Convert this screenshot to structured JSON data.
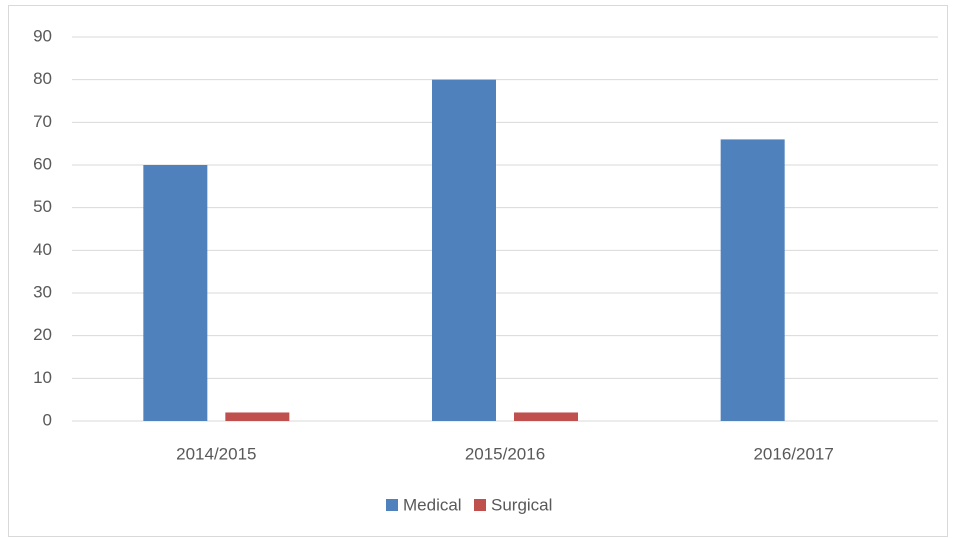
{
  "chart_data": {
    "type": "bar",
    "categories": [
      "2014/2015",
      "2015/2016",
      "2016/2017"
    ],
    "series": [
      {
        "name": "Medical",
        "color": "#4f81bd",
        "values": [
          60,
          80,
          66
        ]
      },
      {
        "name": "Surgical",
        "color": "#c0504d",
        "values": [
          2,
          2,
          0
        ]
      }
    ],
    "ylim": [
      0,
      90
    ],
    "yticks": [
      0,
      10,
      20,
      30,
      40,
      50,
      60,
      70,
      80,
      90
    ],
    "grid": true,
    "legend": "bottom"
  }
}
